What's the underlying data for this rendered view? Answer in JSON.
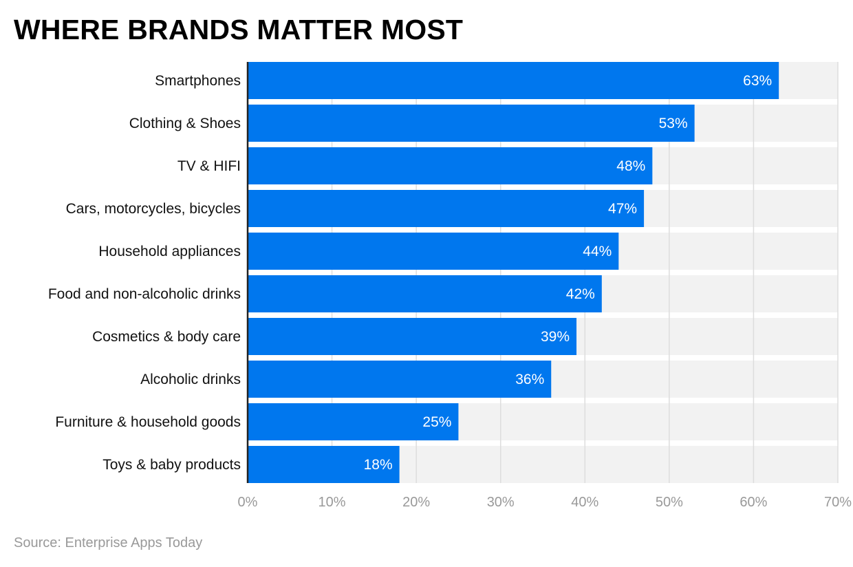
{
  "chart_data": {
    "type": "bar",
    "orientation": "horizontal",
    "title": "WHERE BRANDS MATTER MOST",
    "source": "Source: Enterprise Apps Today",
    "categories": [
      "Smartphones",
      "Clothing & Shoes",
      "TV & HIFI",
      "Cars, motorcycles, bicycles",
      "Household appliances",
      "Food and non-alcoholic drinks",
      "Cosmetics & body care",
      "Alcoholic drinks",
      "Furniture & household goods",
      "Toys & baby products"
    ],
    "values": [
      63,
      53,
      48,
      47,
      44,
      42,
      39,
      36,
      25,
      18
    ],
    "data_labels": [
      "63%",
      "53%",
      "48%",
      "47%",
      "44%",
      "42%",
      "39%",
      "36%",
      "25%",
      "18%"
    ],
    "xlim": [
      0,
      70
    ],
    "x_ticks": [
      0,
      10,
      20,
      30,
      40,
      50,
      60,
      70
    ],
    "x_tick_labels": [
      "0%",
      "10%",
      "20%",
      "30%",
      "40%",
      "50%",
      "60%",
      "70%"
    ],
    "grid": true,
    "colors": {
      "bar": "#0077ee",
      "band": "#f2f2f2",
      "grid": "#dddddd",
      "tick": "#999999"
    }
  }
}
